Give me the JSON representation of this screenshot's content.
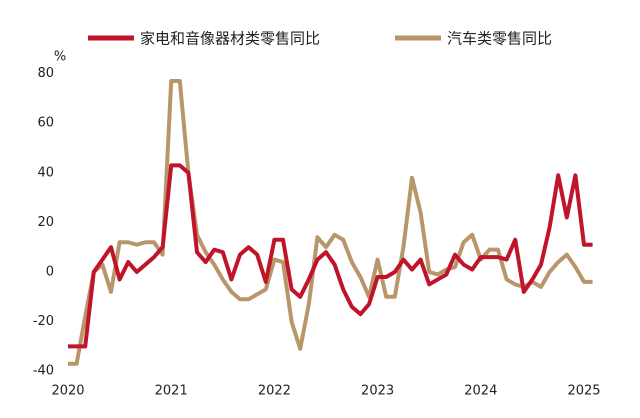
{
  "chart_data": {
    "type": "line",
    "y_label": "%",
    "categories": [
      "2020",
      null,
      null,
      null,
      null,
      null,
      null,
      null,
      null,
      null,
      null,
      null,
      "2021",
      null,
      null,
      null,
      null,
      null,
      null,
      null,
      null,
      null,
      null,
      null,
      "2022",
      null,
      null,
      null,
      null,
      null,
      null,
      null,
      null,
      null,
      null,
      null,
      "2023",
      null,
      null,
      null,
      null,
      null,
      null,
      null,
      null,
      null,
      null,
      null,
      "2024",
      null,
      null,
      null,
      null,
      null,
      null,
      null,
      null,
      null,
      null,
      null,
      "2025",
      null
    ],
    "series": [
      {
        "name": "家电和音像器材类零售同比",
        "color": "#c0142a",
        "values": [
          -30,
          -30,
          -30,
          0,
          5,
          10,
          -3,
          4,
          0,
          3,
          6,
          10,
          43,
          43,
          40,
          8,
          4,
          9,
          8,
          -3,
          7,
          10,
          7,
          -4,
          13,
          13,
          -7,
          -10,
          -3,
          5,
          8,
          3,
          -7,
          -14,
          -17,
          -13,
          -2,
          -2,
          0,
          5,
          1,
          5,
          -5,
          -3,
          -1,
          7,
          3,
          1,
          6,
          6,
          6,
          5,
          13,
          -8,
          -3,
          3,
          18,
          39,
          22,
          39,
          11,
          11
        ]
      },
      {
        "name": "汽车类零售同比",
        "color": "#b8966a",
        "values": [
          -37,
          -37,
          -18,
          0,
          3,
          -8,
          12,
          12,
          11,
          12,
          12,
          7,
          77,
          77,
          40,
          15,
          8,
          3,
          -3,
          -8,
          -11,
          -11,
          -9,
          -7,
          5,
          4,
          -20,
          -31,
          -13,
          14,
          10,
          15,
          13,
          4,
          -2,
          -10,
          5,
          -10,
          -10,
          10,
          38,
          24,
          0,
          -1,
          1,
          2,
          12,
          15,
          5,
          9,
          9,
          -3,
          -5,
          -6,
          -4,
          -6,
          0,
          4,
          7,
          2,
          -4,
          -4
        ]
      }
    ],
    "ylim": [
      -40,
      80
    ],
    "yticks": [
      -40,
      -20,
      0,
      20,
      40,
      60,
      80
    ],
    "legend": "top"
  }
}
